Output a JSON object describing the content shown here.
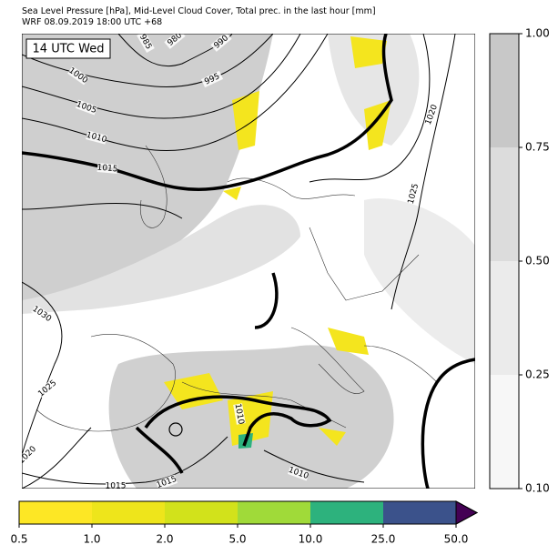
{
  "header": {
    "title_line1": "Sea Level Pressure [hPa], Mid-Level Cloud Cover, Total prec. in the last hour [mm]",
    "title_line2": "WRF 08.09.2019 18:00 UTC +68"
  },
  "map": {
    "time_label": "14 UTC Wed",
    "isobar_labels": [
      "985",
      "980",
      "990",
      "1000",
      "995",
      "1005",
      "1010",
      "1015",
      "1020",
      "1025",
      "1030",
      "1025",
      "1020",
      "1015",
      "1015",
      "1010",
      "1010"
    ]
  },
  "cloud_colorbar": {
    "ticks": [
      "0.10",
      "0.25",
      "0.50",
      "0.75",
      "1.00"
    ]
  },
  "precip_colorbar": {
    "ticks": [
      "0.5",
      "1.0",
      "2.0",
      "5.0",
      "10.0",
      "25.0",
      "50.0"
    ]
  }
}
